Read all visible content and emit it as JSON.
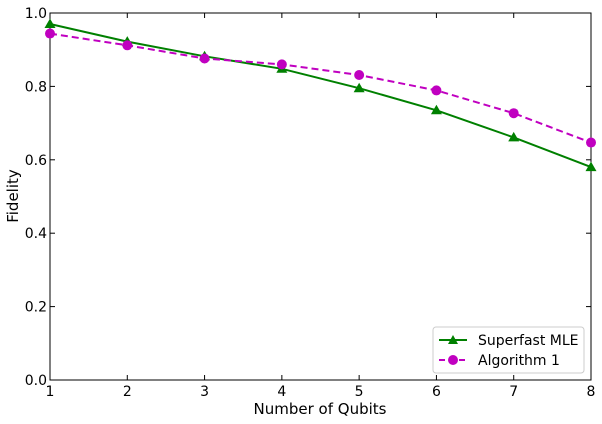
{
  "chart_data": {
    "type": "line",
    "xlabel": "Number of Qubits",
    "ylabel": "Fidelity",
    "xlim": [
      1,
      8
    ],
    "ylim": [
      0,
      1.0
    ],
    "xticks": [
      1,
      2,
      3,
      4,
      5,
      6,
      7,
      8
    ],
    "xtick_labels": [
      "1",
      "2",
      "3",
      "4",
      "5",
      "6",
      "7",
      "8"
    ],
    "yticks": [
      0,
      0.2,
      0.4,
      0.6,
      0.8,
      1.0
    ],
    "ytick_labels": [
      "0.0",
      "0.2",
      "0.4",
      "0.6",
      "0.8",
      "1.0"
    ],
    "grid": false,
    "legend_position": "bottom-right",
    "x": [
      1,
      2,
      3,
      4,
      5,
      6,
      7,
      8
    ],
    "series": [
      {
        "name": "Superfast MLE",
        "values": [
          0.97,
          0.922,
          0.882,
          0.848,
          0.795,
          0.735,
          0.661,
          0.58
        ],
        "color": "#008000",
        "line_style": "solid",
        "marker": "triangle"
      },
      {
        "name": "Algorithm 1",
        "values": [
          0.944,
          0.912,
          0.876,
          0.86,
          0.831,
          0.789,
          0.727,
          0.647
        ],
        "color": "#c000c0",
        "line_style": "dashed",
        "marker": "circle"
      }
    ]
  }
}
